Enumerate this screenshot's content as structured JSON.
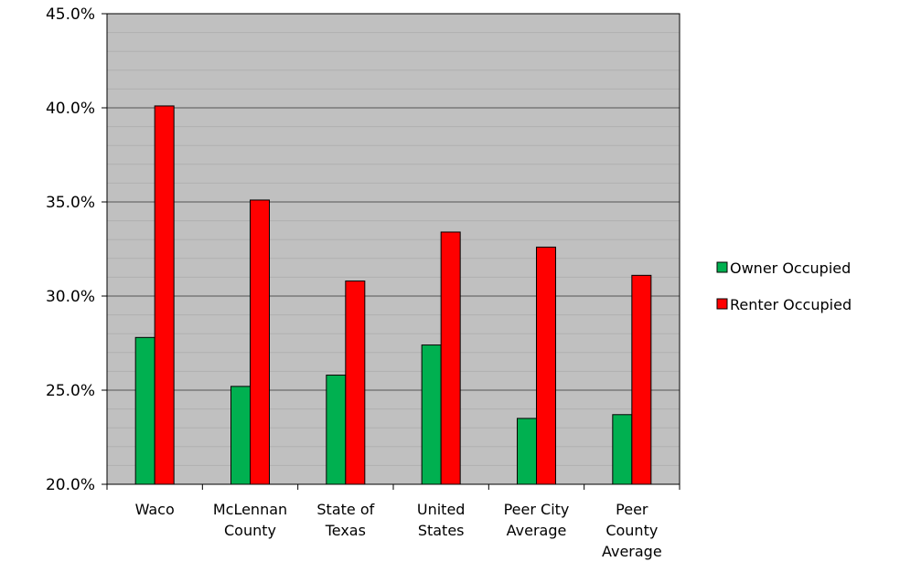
{
  "chart_data": {
    "type": "bar",
    "categories": [
      [
        "Waco"
      ],
      [
        "McLennan",
        "County"
      ],
      [
        "State of",
        "Texas"
      ],
      [
        "United",
        "States"
      ],
      [
        "Peer City",
        "Average"
      ],
      [
        "Peer",
        "County",
        "Average"
      ]
    ],
    "series": [
      {
        "name": "Owner Occupied",
        "color": "#00b050",
        "values": [
          27.8,
          25.2,
          25.8,
          27.4,
          23.5,
          23.7
        ]
      },
      {
        "name": "Renter Occupied",
        "color": "#ff0000",
        "values": [
          40.1,
          35.1,
          30.8,
          33.4,
          32.6,
          31.1
        ]
      }
    ],
    "ylim": [
      20,
      45
    ],
    "yticks": [
      "20.0%",
      "25.0%",
      "30.0%",
      "35.0%",
      "40.0%",
      "45.0%"
    ],
    "ytick_values": [
      20,
      25,
      30,
      35,
      40,
      45
    ],
    "minor_step": 1,
    "plot_background": "#c0c0c0",
    "grid": true,
    "legend_position": "right",
    "title": "",
    "xlabel": "",
    "ylabel": ""
  }
}
